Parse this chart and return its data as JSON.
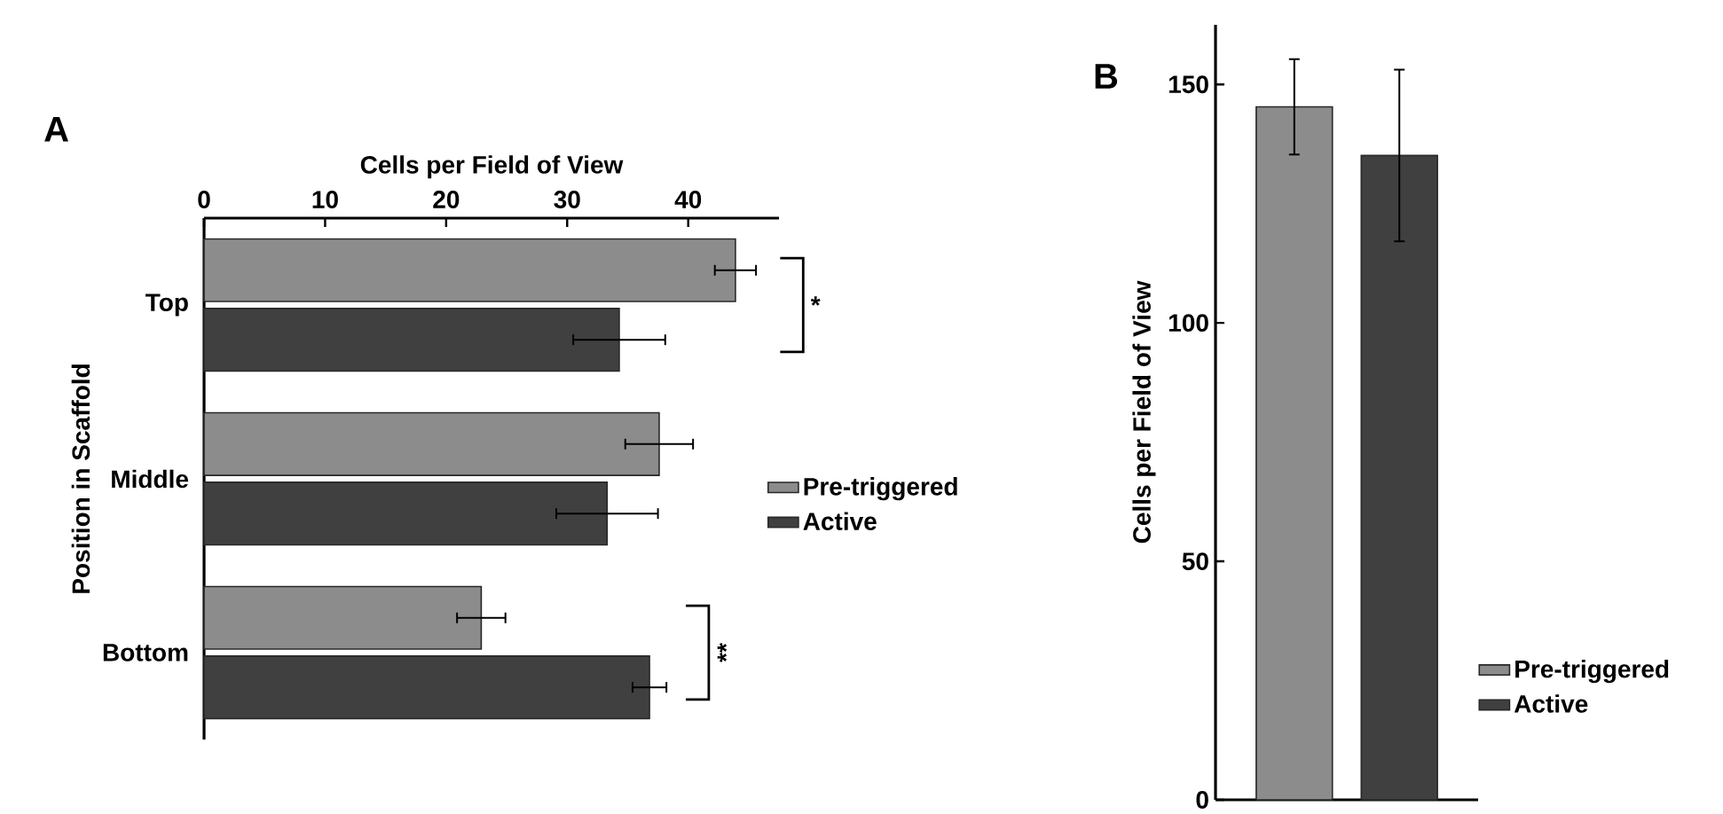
{
  "chart_data": [
    {
      "type": "bar",
      "orientation": "horizontal",
      "title": "A",
      "xlabel": "Cells per Field of View",
      "ylabel": "Position in Scaffold",
      "categories": [
        "Top",
        "Middle",
        "Bottom"
      ],
      "series": [
        {
          "name": "Pre-triggered",
          "color": "#8c8c8c",
          "values": [
            43.9,
            37.6,
            22.9
          ],
          "errors": [
            1.7,
            2.8,
            2.0
          ]
        },
        {
          "name": "Active",
          "color": "#404040",
          "values": [
            34.3,
            33.3,
            36.8
          ],
          "errors": [
            3.8,
            4.2,
            1.4
          ]
        }
      ],
      "xlim": [
        0,
        47.5
      ],
      "xticks": [
        0,
        10,
        20,
        30,
        40
      ],
      "legend": "right",
      "annotations": [
        "*",
        "**"
      ]
    },
    {
      "type": "bar",
      "title": "B",
      "ylabel": "Cells per Field of  View",
      "categories": [
        null
      ],
      "series": [
        {
          "name": "Pre-triggered",
          "color": "#8c8c8c",
          "values": [
            145.3
          ],
          "errors": [
            10
          ]
        },
        {
          "name": "Active",
          "color": "#404040",
          "values": [
            135.1
          ],
          "errors": [
            18
          ]
        }
      ],
      "ylim": [
        0,
        162.5
      ],
      "yticks": [
        0,
        50,
        100,
        150
      ],
      "legend": "bottom right"
    }
  ]
}
